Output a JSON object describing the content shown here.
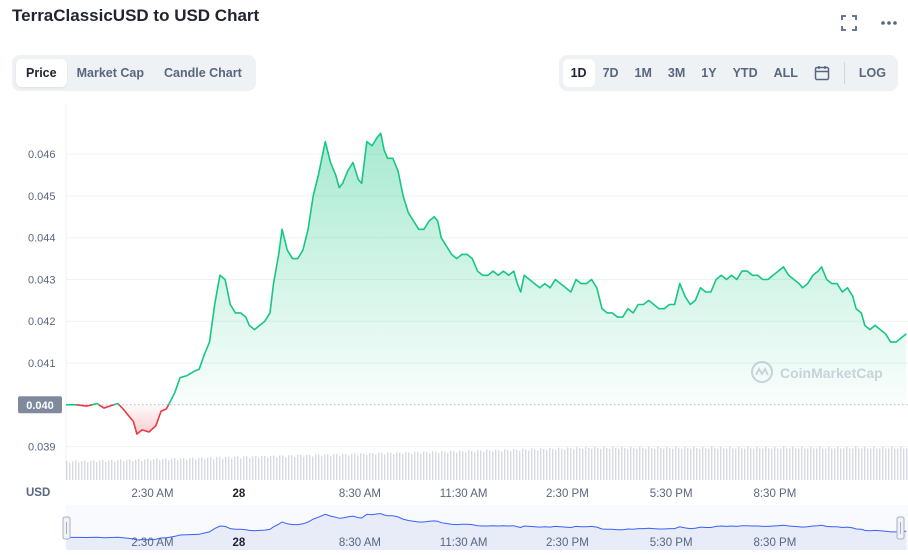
{
  "title": "TerraClassicUSD to USD Chart",
  "header_icons": [
    "fullscreen-icon",
    "more-icon"
  ],
  "tabs": [
    {
      "label": "Price",
      "active": true
    },
    {
      "label": "Market Cap",
      "active": false
    },
    {
      "label": "Candle Chart",
      "active": false
    }
  ],
  "ranges": [
    {
      "label": "1D",
      "active": true
    },
    {
      "label": "7D",
      "active": false
    },
    {
      "label": "1M",
      "active": false
    },
    {
      "label": "3M",
      "active": false
    },
    {
      "label": "1Y",
      "active": false
    },
    {
      "label": "YTD",
      "active": false
    },
    {
      "label": "ALL",
      "active": false
    }
  ],
  "calendar_icon": "calendar-icon",
  "log_label": "LOG",
  "watermark": "CoinMarketCap",
  "colors": {
    "up": "#16c784",
    "down": "#ea3943",
    "baseline_label_bg": "#808a9d",
    "navigator_fill": "#e7ecf8",
    "navigator_line": "#3861fb"
  },
  "chart_data": {
    "type": "line",
    "currency_label": "USD",
    "baseline": 0.04,
    "baseline_label": "0.040",
    "ylim": [
      0.0382,
      0.0472
    ],
    "y_ticks": [
      {
        "v": 0.046,
        "label": "0.046"
      },
      {
        "v": 0.045,
        "label": "0.045"
      },
      {
        "v": 0.044,
        "label": "0.044"
      },
      {
        "v": 0.043,
        "label": "0.043"
      },
      {
        "v": 0.042,
        "label": "0.042"
      },
      {
        "v": 0.041,
        "label": "0.041"
      },
      {
        "v": 0.039,
        "label": "0.039"
      }
    ],
    "x_range": [
      0,
      24.35
    ],
    "x_ticks": [
      {
        "t": 2.5,
        "label": "2:30 AM",
        "bold": false
      },
      {
        "t": 5.0,
        "label": "28",
        "bold": true
      },
      {
        "t": 8.5,
        "label": "8:30 AM",
        "bold": false
      },
      {
        "t": 11.5,
        "label": "11:30 AM",
        "bold": false
      },
      {
        "t": 14.5,
        "label": "2:30 PM",
        "bold": false
      },
      {
        "t": 17.5,
        "label": "5:30 PM",
        "bold": false
      },
      {
        "t": 20.5,
        "label": "8:30 PM",
        "bold": false
      }
    ],
    "series": [
      {
        "points": [
          [
            0.0,
            0.04
          ],
          [
            0.3,
            0.04
          ],
          [
            0.6,
            0.03997
          ],
          [
            0.9,
            0.04003
          ],
          [
            1.1,
            0.03992
          ],
          [
            1.3,
            0.03998
          ],
          [
            1.5,
            0.04003
          ],
          [
            1.65,
            0.0399
          ],
          [
            1.8,
            0.03975
          ],
          [
            1.95,
            0.0396
          ],
          [
            2.05,
            0.0393
          ],
          [
            2.2,
            0.0394
          ],
          [
            2.4,
            0.03935
          ],
          [
            2.6,
            0.0395
          ],
          [
            2.75,
            0.03985
          ],
          [
            2.9,
            0.0399
          ],
          [
            3.0,
            0.04005
          ],
          [
            3.15,
            0.0403
          ],
          [
            3.3,
            0.04065
          ],
          [
            3.5,
            0.0407
          ],
          [
            3.7,
            0.0408
          ],
          [
            3.85,
            0.04085
          ],
          [
            4.0,
            0.0412
          ],
          [
            4.15,
            0.0415
          ],
          [
            4.3,
            0.0424
          ],
          [
            4.45,
            0.0431
          ],
          [
            4.6,
            0.043
          ],
          [
            4.75,
            0.0424
          ],
          [
            4.9,
            0.0422
          ],
          [
            5.05,
            0.0422
          ],
          [
            5.2,
            0.0421
          ],
          [
            5.3,
            0.0419
          ],
          [
            5.45,
            0.0418
          ],
          [
            5.6,
            0.0419
          ],
          [
            5.75,
            0.042
          ],
          [
            5.9,
            0.0422
          ],
          [
            6.0,
            0.0429
          ],
          [
            6.15,
            0.0436
          ],
          [
            6.25,
            0.0442
          ],
          [
            6.4,
            0.0437
          ],
          [
            6.55,
            0.0435
          ],
          [
            6.7,
            0.0435
          ],
          [
            6.85,
            0.0437
          ],
          [
            7.0,
            0.0442
          ],
          [
            7.15,
            0.045
          ],
          [
            7.3,
            0.0455
          ],
          [
            7.5,
            0.0463
          ],
          [
            7.65,
            0.0458
          ],
          [
            7.8,
            0.0455
          ],
          [
            7.9,
            0.0452
          ],
          [
            8.0,
            0.0453
          ],
          [
            8.15,
            0.0456
          ],
          [
            8.3,
            0.0458
          ],
          [
            8.45,
            0.0454
          ],
          [
            8.55,
            0.0453
          ],
          [
            8.7,
            0.0463
          ],
          [
            8.85,
            0.0462
          ],
          [
            9.0,
            0.0464
          ],
          [
            9.1,
            0.0465
          ],
          [
            9.2,
            0.0461
          ],
          [
            9.3,
            0.0459
          ],
          [
            9.45,
            0.0459
          ],
          [
            9.6,
            0.0456
          ],
          [
            9.75,
            0.045
          ],
          [
            9.9,
            0.0446
          ],
          [
            10.05,
            0.0444
          ],
          [
            10.2,
            0.0442
          ],
          [
            10.35,
            0.0442
          ],
          [
            10.5,
            0.0444
          ],
          [
            10.65,
            0.0445
          ],
          [
            10.75,
            0.0444
          ],
          [
            10.85,
            0.044
          ],
          [
            11.0,
            0.0438
          ],
          [
            11.15,
            0.0436
          ],
          [
            11.3,
            0.0435
          ],
          [
            11.45,
            0.0436
          ],
          [
            11.6,
            0.0436
          ],
          [
            11.75,
            0.0435
          ],
          [
            11.9,
            0.0432
          ],
          [
            12.05,
            0.0431
          ],
          [
            12.2,
            0.0431
          ],
          [
            12.35,
            0.0432
          ],
          [
            12.5,
            0.0431
          ],
          [
            12.65,
            0.0432
          ],
          [
            12.8,
            0.0431
          ],
          [
            12.95,
            0.0432
          ],
          [
            13.05,
            0.0429
          ],
          [
            13.15,
            0.0427
          ],
          [
            13.25,
            0.0431
          ],
          [
            13.4,
            0.043
          ],
          [
            13.55,
            0.0429
          ],
          [
            13.7,
            0.0428
          ],
          [
            13.85,
            0.0429
          ],
          [
            14.0,
            0.0428
          ],
          [
            14.15,
            0.043
          ],
          [
            14.3,
            0.0429
          ],
          [
            14.45,
            0.0428
          ],
          [
            14.6,
            0.0427
          ],
          [
            14.75,
            0.043
          ],
          [
            14.9,
            0.0429
          ],
          [
            15.05,
            0.0429
          ],
          [
            15.2,
            0.043
          ],
          [
            15.35,
            0.0428
          ],
          [
            15.5,
            0.0423
          ],
          [
            15.65,
            0.0422
          ],
          [
            15.8,
            0.0422
          ],
          [
            15.95,
            0.0421
          ],
          [
            16.1,
            0.0421
          ],
          [
            16.25,
            0.0423
          ],
          [
            16.4,
            0.0422
          ],
          [
            16.55,
            0.0424
          ],
          [
            16.7,
            0.0424
          ],
          [
            16.85,
            0.0425
          ],
          [
            17.0,
            0.0424
          ],
          [
            17.15,
            0.0423
          ],
          [
            17.3,
            0.0423
          ],
          [
            17.45,
            0.0424
          ],
          [
            17.6,
            0.0424
          ],
          [
            17.75,
            0.0429
          ],
          [
            17.9,
            0.0426
          ],
          [
            18.05,
            0.0424
          ],
          [
            18.2,
            0.0425
          ],
          [
            18.35,
            0.0428
          ],
          [
            18.5,
            0.0427
          ],
          [
            18.65,
            0.0427
          ],
          [
            18.8,
            0.043
          ],
          [
            18.95,
            0.0431
          ],
          [
            19.1,
            0.043
          ],
          [
            19.25,
            0.0431
          ],
          [
            19.4,
            0.043
          ],
          [
            19.55,
            0.0432
          ],
          [
            19.7,
            0.0432
          ],
          [
            19.85,
            0.0431
          ],
          [
            20.0,
            0.0431
          ],
          [
            20.15,
            0.043
          ],
          [
            20.3,
            0.043
          ],
          [
            20.45,
            0.0431
          ],
          [
            20.6,
            0.0432
          ],
          [
            20.75,
            0.0433
          ],
          [
            20.9,
            0.0431
          ],
          [
            21.05,
            0.043
          ],
          [
            21.2,
            0.0429
          ],
          [
            21.3,
            0.0428
          ],
          [
            21.45,
            0.0429
          ],
          [
            21.6,
            0.0431
          ],
          [
            21.75,
            0.0432
          ],
          [
            21.85,
            0.0433
          ],
          [
            22.0,
            0.043
          ],
          [
            22.15,
            0.0429
          ],
          [
            22.3,
            0.0429
          ],
          [
            22.45,
            0.0427
          ],
          [
            22.6,
            0.0428
          ],
          [
            22.75,
            0.0426
          ],
          [
            22.85,
            0.0423
          ],
          [
            23.0,
            0.0422
          ],
          [
            23.1,
            0.0419
          ],
          [
            23.25,
            0.0418
          ],
          [
            23.4,
            0.0419
          ],
          [
            23.55,
            0.0418
          ],
          [
            23.7,
            0.0417
          ],
          [
            23.85,
            0.0415
          ],
          [
            24.0,
            0.0415
          ],
          [
            24.15,
            0.0416
          ],
          [
            24.3,
            0.0417
          ]
        ]
      }
    ]
  }
}
